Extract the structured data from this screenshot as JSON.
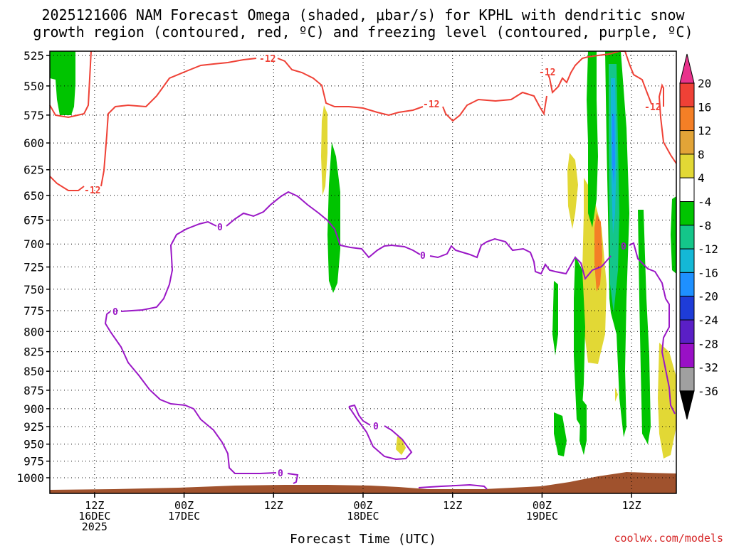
{
  "title_line1": "2025121606 NAM Forecast Omega (shaded, μbar/s) for KPHL with dendritic snow",
  "title_line2": "growth region (contoured, red, ºC) and freezing level (contoured, purple, ºC)",
  "credit": "coolwx.com/models",
  "chart_data": {
    "type": "time-height cross section",
    "title": "2025121606 NAM Forecast Omega (shaded, μbar/s) for KPHL with dendritic snow growth region (contoured, red, ºC) and freezing level (contoured, purple, ºC)",
    "xlabel": "Forecast Time (UTC)",
    "ylabel": "",
    "x_ticks": [
      {
        "h": 6,
        "line1": "12Z",
        "line2": "16DEC",
        "line3": "2025"
      },
      {
        "h": 18,
        "line1": "00Z",
        "line2": "17DEC",
        "line3": ""
      },
      {
        "h": 30,
        "line1": "12Z",
        "line2": "",
        "line3": ""
      },
      {
        "h": 42,
        "line1": "00Z",
        "line2": "18DEC",
        "line3": ""
      },
      {
        "h": 54,
        "line1": "12Z",
        "line2": "",
        "line3": ""
      },
      {
        "h": 66,
        "line1": "00Z",
        "line2": "19DEC",
        "line3": ""
      },
      {
        "h": 78,
        "line1": "12Z",
        "line2": "",
        "line3": ""
      }
    ],
    "xlim_hours": [
      0,
      84
    ],
    "y_ticks_hPa": [
      525,
      550,
      575,
      600,
      625,
      650,
      675,
      700,
      725,
      750,
      775,
      800,
      825,
      850,
      875,
      900,
      925,
      950,
      975,
      1000
    ],
    "y_axis": "pressure (log, inverted)",
    "grid": true,
    "colorbar": {
      "ticks": [
        20,
        16,
        12,
        8,
        4,
        -4,
        -8,
        -12,
        -16,
        -20,
        -24,
        -28,
        -32,
        -36
      ],
      "colors": [
        "#e8338c",
        "#ef4136",
        "#f47f26",
        "#e2a437",
        "#e2d835",
        "#ffffff",
        "#00c400",
        "#14c68a",
        "#14b8d6",
        "#1e90ff",
        "#1e3cd8",
        "#5a1fc6",
        "#9910c6",
        "#a0a0a0",
        "#000000"
      ]
    },
    "contours": [
      {
        "name": "dendritic snow growth region",
        "level": -12,
        "label": "-12",
        "color": "#ef4136"
      },
      {
        "name": "freezing level",
        "level": 0,
        "label": "0",
        "color": "#9a17c6"
      }
    ],
    "terrain_color": "#a0522d"
  }
}
